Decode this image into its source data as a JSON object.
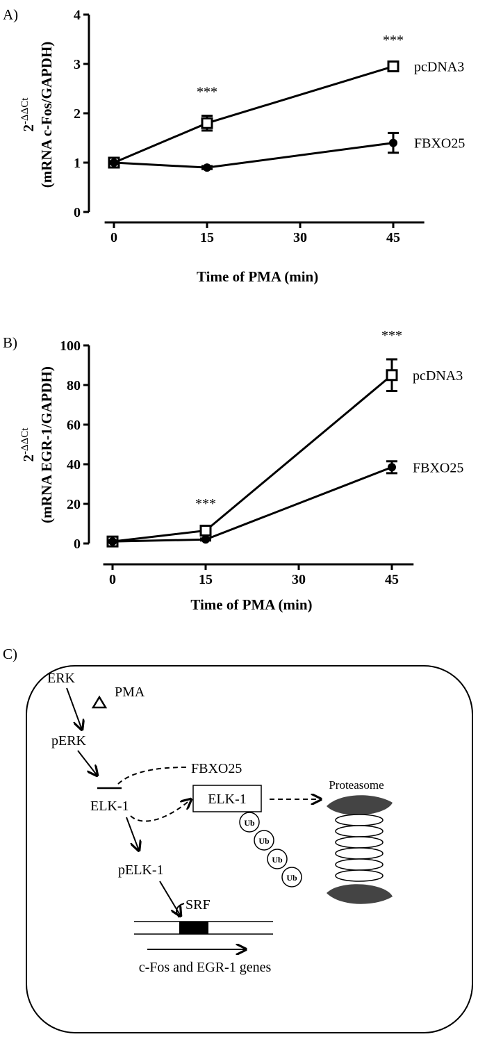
{
  "chart_data": [
    {
      "type": "line",
      "panel_label": "A)",
      "xlabel": "Time of PMA (min)",
      "ylabel": {
        "base": "2",
        "exp": "-ΔΔCt",
        "sub": "(mRNA c-Fos/GAPDH)"
      },
      "x": [
        0,
        15,
        45
      ],
      "xlim": [
        -1.5,
        50
      ],
      "xticks": [
        0,
        15,
        30,
        45
      ],
      "ylim": [
        0,
        4
      ],
      "yticks": [
        0,
        1,
        2,
        3,
        4
      ],
      "series": [
        {
          "name": "pcDNA3",
          "color": "#000000",
          "marker": "square-open",
          "values": [
            1,
            1.8,
            2.95
          ],
          "errors": [
            0.05,
            0.15,
            0.05
          ]
        },
        {
          "name": "FBXO25",
          "color": "#000000",
          "marker": "circle",
          "values": [
            1,
            0.9,
            1.4
          ],
          "errors": [
            0.03,
            0.03,
            0.2
          ]
        }
      ],
      "annotations": [
        {
          "text": "***",
          "x": 15
        },
        {
          "text": "***",
          "x": 45
        }
      ]
    },
    {
      "type": "line",
      "panel_label": "B)",
      "xlabel": "Time of PMA (min)",
      "ylabel": {
        "base": "2",
        "exp": "-ΔΔCt",
        "sub": "(mRNA EGR-1/GAPDH)"
      },
      "x": [
        0,
        15,
        45
      ],
      "xlim": [
        -1.5,
        48.5
      ],
      "xticks": [
        0,
        15,
        30,
        45
      ],
      "ylim": [
        0,
        100
      ],
      "yticks": [
        0,
        20,
        40,
        60,
        80,
        100
      ],
      "series": [
        {
          "name": "pcDNA3",
          "color": "#000000",
          "marker": "square-open",
          "values": [
            1,
            6.5,
            85
          ],
          "errors": [
            0.5,
            1.5,
            8
          ]
        },
        {
          "name": "FBXO25",
          "color": "#000000",
          "marker": "circle",
          "values": [
            1,
            2,
            38.5
          ],
          "errors": [
            0.5,
            0.5,
            3
          ]
        }
      ],
      "annotations": [
        {
          "text": "***",
          "x": 15
        },
        {
          "text": "***",
          "x": 45
        }
      ]
    }
  ],
  "diagram": {
    "panel_label": "C)",
    "nodes": [
      "ERK",
      "PMA",
      "pERK",
      "FBXO25",
      "ELK-1",
      "ELK-1",
      "pELK-1",
      "SRF",
      "c-Fos and EGR-1 genes",
      "Proteasome"
    ],
    "ub": [
      "Ub",
      "Ub",
      "Ub",
      "Ub"
    ]
  }
}
